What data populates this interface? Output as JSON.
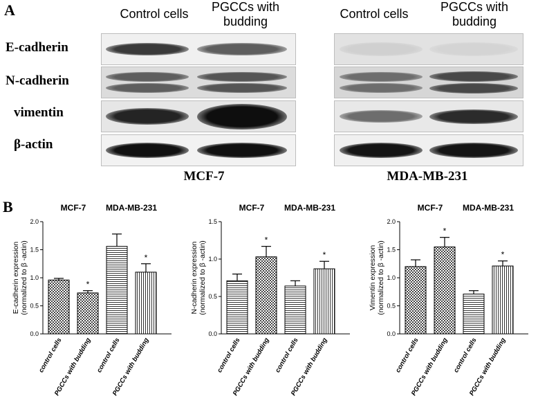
{
  "panel_a": {
    "letter": "A",
    "blots": [
      {
        "cell_line": "MCF-7",
        "columns": [
          "Control cells",
          "PGCCs with budding"
        ],
        "strips": [
          {
            "tone": "#f0f0f0",
            "bands": [
              {
                "darkness": 0.78,
                "thickness": 0.42
              },
              {
                "darkness": 0.62,
                "thickness": 0.4
              }
            ]
          },
          {
            "tone": "#dcdcdc",
            "bands": [
              {
                "darkness": 0.62,
                "thickness": 0.7,
                "double": true
              },
              {
                "darkness": 0.66,
                "thickness": 0.7,
                "double": true
              }
            ]
          },
          {
            "tone": "#e6e6e6",
            "bands": [
              {
                "darkness": 0.88,
                "thickness": 0.55
              },
              {
                "darkness": 0.98,
                "thickness": 0.85
              }
            ]
          },
          {
            "tone": "#f2f2f2",
            "bands": [
              {
                "darkness": 0.97,
                "thickness": 0.5
              },
              {
                "darkness": 0.97,
                "thickness": 0.5
              }
            ]
          }
        ]
      },
      {
        "cell_line": "MDA-MB-231",
        "columns": [
          "Control cells",
          "PGCCs with budding"
        ],
        "strips": [
          {
            "tone": "#e2e2e2",
            "bands": [
              {
                "darkness": 0.1,
                "thickness": 0.45
              },
              {
                "darkness": 0.08,
                "thickness": 0.45
              }
            ]
          },
          {
            "tone": "#d6d6d6",
            "bands": [
              {
                "darkness": 0.55,
                "thickness": 0.7,
                "double": true
              },
              {
                "darkness": 0.72,
                "thickness": 0.75,
                "double": true
              }
            ]
          },
          {
            "tone": "#e8e8e8",
            "bands": [
              {
                "darkness": 0.55,
                "thickness": 0.4
              },
              {
                "darkness": 0.85,
                "thickness": 0.48
              }
            ]
          },
          {
            "tone": "#f0f0f0",
            "bands": [
              {
                "darkness": 0.95,
                "thickness": 0.5
              },
              {
                "darkness": 0.95,
                "thickness": 0.5
              }
            ]
          }
        ]
      }
    ],
    "proteins": [
      "E-cadherin",
      "N-cadherin",
      "vimentin",
      "β-actin"
    ]
  },
  "panel_b": {
    "letter": "B"
  },
  "chart_data": [
    {
      "type": "bar",
      "groups": [
        "MCF-7",
        "MDA-MB-231"
      ],
      "categories": [
        "control cells",
        "PGCCs with budding",
        "control cells",
        "PGCCs with budding"
      ],
      "values": [
        0.96,
        0.73,
        1.56,
        1.1
      ],
      "errors": [
        0.03,
        0.04,
        0.22,
        0.15
      ],
      "significance": [
        "",
        "*",
        "",
        "*"
      ],
      "patterns": [
        "checker",
        "checker",
        "hlines",
        "vlines"
      ],
      "ylabel_line1": "E-cadherin expression",
      "ylabel_line2": "(normalized to β -actin)",
      "ylim": [
        0,
        2.0
      ],
      "yticks": [
        "0.0",
        "0.5",
        "1.0",
        "1.5",
        "2.0"
      ],
      "ytick_values": [
        0,
        0.5,
        1.0,
        1.5,
        2.0
      ],
      "grid": false
    },
    {
      "type": "bar",
      "groups": [
        "MCF-7",
        "MDA-MB-231"
      ],
      "categories": [
        "control cells",
        "PGCCs with budding",
        "control cells",
        "PGCCs with budding"
      ],
      "values": [
        0.71,
        1.03,
        0.64,
        0.87
      ],
      "errors": [
        0.09,
        0.14,
        0.07,
        0.1
      ],
      "significance": [
        "",
        "*",
        "",
        "*"
      ],
      "patterns": [
        "hlines",
        "checker",
        "hlines",
        "vlines"
      ],
      "ylabel_line1": "N-cadherin expression",
      "ylabel_line2": "(normalized to β -actin)",
      "ylim": [
        0,
        1.5
      ],
      "yticks": [
        "0.0",
        "0.5",
        "1.0",
        "1.5"
      ],
      "ytick_values": [
        0,
        0.5,
        1.0,
        1.5
      ],
      "grid": false
    },
    {
      "type": "bar",
      "groups": [
        "MCF-7",
        "MDA-MB-231"
      ],
      "categories": [
        "control cells",
        "PGCCs with budding",
        "control cells",
        "PGCCs with budding"
      ],
      "values": [
        1.2,
        1.55,
        0.71,
        1.21
      ],
      "errors": [
        0.12,
        0.17,
        0.06,
        0.09
      ],
      "significance": [
        "",
        "*",
        "",
        "*"
      ],
      "patterns": [
        "checker",
        "checker",
        "hlines",
        "vlines"
      ],
      "ylabel_line1": "Vimentin expression",
      "ylabel_line2": "(normalized to β -actin)",
      "ylim": [
        0,
        2.0
      ],
      "yticks": [
        "0.0",
        "0.5",
        "1.0",
        "1.5",
        "2.0"
      ],
      "ytick_values": [
        0,
        0.5,
        1.0,
        1.5,
        2.0
      ],
      "grid": false
    }
  ]
}
